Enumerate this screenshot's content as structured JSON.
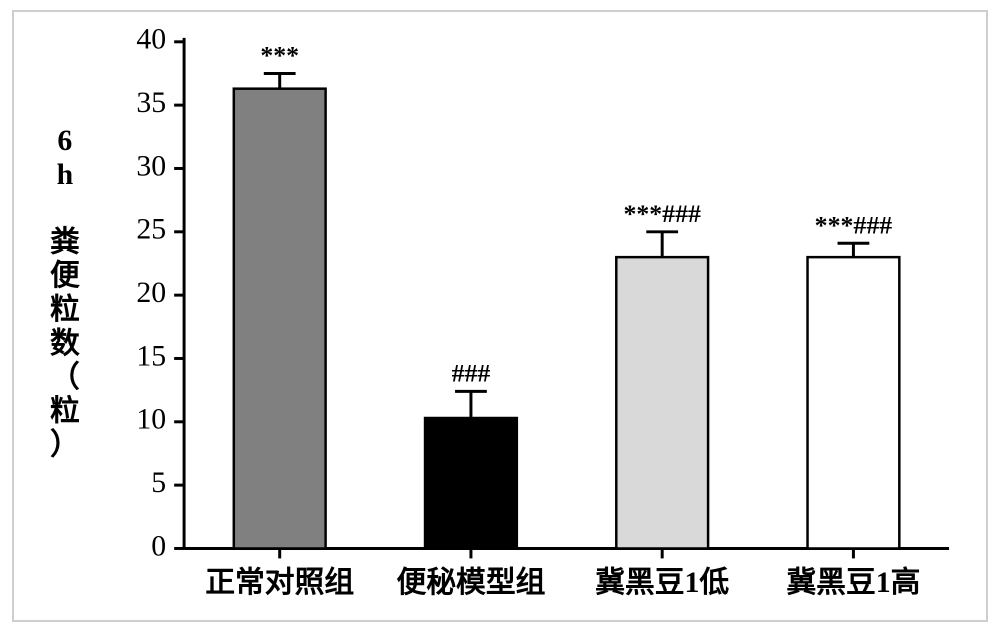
{
  "chart": {
    "type": "bar",
    "background_color": "#ffffff",
    "frame_border_color": "#cfcfcf",
    "axis_color": "#000000",
    "axis_line_width": 3,
    "tick_length": 10,
    "ylabel": "6h 粪便粒数（粒）",
    "ylabel_fontsize": 30,
    "ylim": [
      0,
      40
    ],
    "ytick_step": 5,
    "yticks": [
      0,
      5,
      10,
      15,
      20,
      25,
      30,
      35,
      40
    ],
    "ytick_fontsize": 30,
    "cat_label_fontsize": 30,
    "sig_label_fontsize": 26,
    "bar_width_rel": 0.48,
    "bar_border_color": "#000000",
    "bar_border_width": 2.5,
    "errbar_color": "#000000",
    "errbar_line_width": 3,
    "errbar_cap_halfwidth": 16,
    "categories": [
      {
        "label": "正常对照组",
        "value": 36.3,
        "err": 1.2,
        "fill": "#808080",
        "sig": "***"
      },
      {
        "label": "便秘模型组",
        "value": 10.3,
        "err": 2.1,
        "fill": "#000000",
        "sig": "###"
      },
      {
        "label": "冀黑豆1低",
        "value": 23.0,
        "err": 2.0,
        "fill": "#d9d9d9",
        "sig": "***###"
      },
      {
        "label": "冀黑豆1高",
        "value": 23.0,
        "err": 1.1,
        "fill": "#ffffff",
        "sig": "***###"
      }
    ]
  }
}
